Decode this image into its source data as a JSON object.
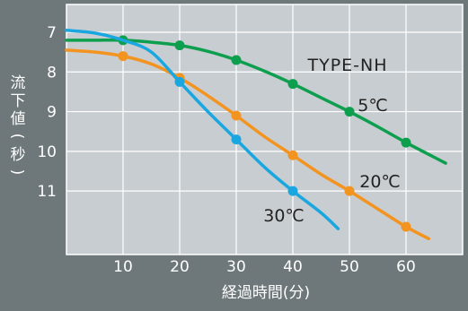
{
  "chart_data": {
    "type": "line",
    "title": "",
    "xlabel": "経過時間(分)",
    "ylabel": "流下値(秒)",
    "annotation": "TYPE-NH",
    "xlim": [
      0,
      70
    ],
    "ylim": [
      12.6,
      6.3
    ],
    "y_inverted": true,
    "x_ticks": [
      10,
      20,
      30,
      40,
      50,
      60
    ],
    "y_ticks": [
      7,
      8,
      9,
      10,
      11
    ],
    "grid": true,
    "series": [
      {
        "name": "5℃",
        "color": "#0e9f4e",
        "curve_x": [
          0,
          5,
          10,
          15,
          20,
          25,
          30,
          35,
          40,
          45,
          50,
          55,
          60,
          65,
          67
        ],
        "curve_y": [
          7.2,
          7.2,
          7.2,
          7.25,
          7.33,
          7.48,
          7.7,
          7.98,
          8.3,
          8.65,
          9.0,
          9.38,
          9.78,
          10.15,
          10.3
        ],
        "marker_x": [
          10,
          20,
          30,
          40,
          50,
          60
        ],
        "marker_y": [
          7.2,
          7.33,
          7.7,
          8.3,
          9.0,
          9.78
        ]
      },
      {
        "name": "20℃",
        "color": "#f39420",
        "curve_x": [
          0,
          5,
          10,
          15,
          20,
          25,
          30,
          35,
          40,
          45,
          50,
          55,
          60,
          64
        ],
        "curve_y": [
          7.45,
          7.5,
          7.6,
          7.8,
          8.15,
          8.6,
          9.1,
          9.63,
          10.1,
          10.58,
          11.0,
          11.45,
          11.9,
          12.2
        ],
        "marker_x": [
          10,
          20,
          30,
          40,
          50,
          60
        ],
        "marker_y": [
          7.6,
          8.15,
          9.1,
          10.1,
          11.0,
          11.9
        ]
      },
      {
        "name": "30℃",
        "color": "#1aa7e0",
        "curve_x": [
          0,
          5,
          10,
          15,
          20,
          25,
          30,
          35,
          40,
          45,
          48
        ],
        "curve_y": [
          6.95,
          7.02,
          7.2,
          7.5,
          8.25,
          9.0,
          9.7,
          10.4,
          11.0,
          11.55,
          11.95
        ],
        "marker_x": [
          20,
          30,
          40
        ],
        "marker_y": [
          8.25,
          9.7,
          11.0
        ]
      }
    ],
    "series_labels": [
      {
        "series": "5℃",
        "text": "5℃"
      },
      {
        "series": "20℃",
        "text": "20℃"
      },
      {
        "series": "30℃",
        "text": "30℃"
      }
    ]
  }
}
